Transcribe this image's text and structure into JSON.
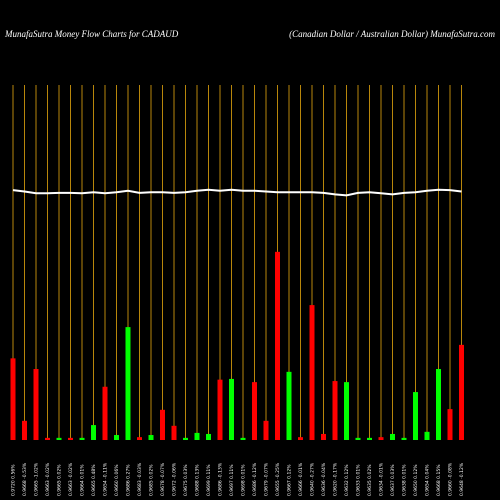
{
  "chart_data": {
    "type": "bar",
    "title": "MunafaSutra  Money Flow  Charts for CADAUD",
    "subtitle": "(Canadian  Dollar / Australian  Dollar) MunafaSutra.com",
    "categories": [
      "0.9720 0.56%",
      "0.9668 -0.53%",
      "0.9665 -1.02%",
      "0.9663 -0.02%",
      "0.9665 0.02%",
      "0.9663 -0.02%",
      "0.9664 0.01%",
      "0.9665 0.48%",
      "0.9654 -0.11%",
      "0.9660 0.06%",
      "0.9686 0.27%",
      "0.9683 -0.03%",
      "0.9685 0.02%",
      "0.9678 -0.07%",
      "0.9672 -0.06%",
      "0.9675 0.03%",
      "0.9688 0.13%",
      "0.9699 0.11%",
      "0.9686 -0.13%",
      "0.9697 0.11%",
      "0.9698 0.01%",
      "0.9686 -0.12%",
      "0.9679 -0.07%",
      "0.9655 -0.25%",
      "0.9667 0.12%",
      "0.9666 -0.01%",
      "0.9640 -0.27%",
      "0.9636 -0.04%",
      "0.9620 -0.17%",
      "0.9632 0.12%",
      "0.9633 0.01%",
      "0.9635 0.02%",
      "0.9634 -0.01%",
      "0.9637 0.03%",
      "0.9638 0.01%",
      "0.9650 0.12%",
      "0.9654 0.04%",
      "0.9668 0.15%",
      "0.9660 -0.08%",
      "0.9648 -0.12%"
    ],
    "values": [
      23,
      5.4,
      20,
      0.6,
      0.6,
      0.6,
      0.6,
      4.2,
      15,
      1.4,
      31.8,
      0.8,
      1.4,
      8.5,
      4,
      0.6,
      2,
      1.7,
      17,
      17.2,
      0.6,
      16.3,
      5.4,
      53,
      19.2,
      0.8,
      38,
      1.7,
      16.6,
      16.3,
      0.6,
      0.6,
      0.8,
      1.7,
      0.6,
      13.5,
      2.3,
      20,
      8.7,
      26.8
    ],
    "colors": [
      "#ff0000",
      "#ff0000",
      "#ff0000",
      "#ff0000",
      "#00ff00",
      "#ff0000",
      "#00ff00",
      "#00ff00",
      "#ff0000",
      "#00ff00",
      "#00ff00",
      "#ff0000",
      "#00ff00",
      "#ff0000",
      "#ff0000",
      "#00ff00",
      "#00ff00",
      "#00ff00",
      "#ff0000",
      "#00ff00",
      "#00ff00",
      "#ff0000",
      "#ff0000",
      "#ff0000",
      "#00ff00",
      "#ff0000",
      "#ff0000",
      "#ff0000",
      "#ff0000",
      "#00ff00",
      "#00ff00",
      "#00ff00",
      "#ff0000",
      "#00ff00",
      "#00ff00",
      "#00ff00",
      "#00ff00",
      "#00ff00",
      "#ff0000",
      "#ff0000"
    ],
    "line": {
      "color": "#ffffff",
      "values": [
        70.4,
        70,
        69.5,
        69.5,
        69.6,
        69.6,
        69.5,
        69.8,
        69.5,
        69.8,
        70.2,
        69.6,
        69.8,
        69.8,
        69.6,
        69.8,
        70.2,
        70.5,
        70.2,
        70.5,
        70.2,
        70.2,
        70,
        69.8,
        69.8,
        69.8,
        69.8,
        69.6,
        69.2,
        68.9,
        69.6,
        69.8,
        69.5,
        69.2,
        69.6,
        69.8,
        70.2,
        70.5,
        70.4,
        70
      ]
    },
    "grid_color": "#b8860b",
    "ylim": [
      0,
      100
    ]
  }
}
